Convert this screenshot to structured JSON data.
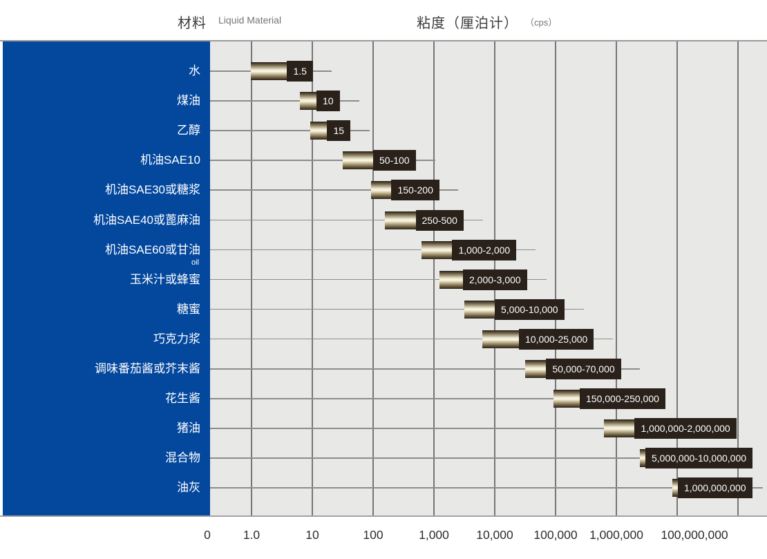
{
  "chart_data": {
    "type": "bar",
    "orientation": "horizontal",
    "x_scale": "log",
    "title_left_zh": "材料",
    "title_left_en": "Liquid Material",
    "title_right_zh": "粘度（厘泊计）",
    "title_right_unit": "（cps）",
    "x_axis": {
      "ticks": [
        {
          "label": "0",
          "value": 0
        },
        {
          "label": "1.0",
          "value": 1
        },
        {
          "label": "10",
          "value": 10
        },
        {
          "label": "100",
          "value": 100
        },
        {
          "label": "1,000",
          "value": 1000
        },
        {
          "label": "10,000",
          "value": 10000
        },
        {
          "label": "100,000",
          "value": 100000
        },
        {
          "label": "1,000,000",
          "value": 1000000
        },
        {
          "label": "100,000,000",
          "value": 100000000
        }
      ]
    },
    "materials": [
      {
        "name": "水",
        "range_label": "1.5",
        "min": 1.5,
        "max": 1.5,
        "tail": true
      },
      {
        "name": "煤油",
        "range_label": "10",
        "min": 10,
        "max": 10,
        "tail": true
      },
      {
        "name": "乙醇",
        "range_label": "15",
        "min": 15,
        "max": 15,
        "tail": true
      },
      {
        "name": "机油SAE10",
        "range_label": "50-100",
        "min": 50,
        "max": 100,
        "tail": true
      },
      {
        "name": "机油SAE30或糖浆",
        "range_label": "150-200",
        "min": 150,
        "max": 200,
        "tail": true
      },
      {
        "name": "机油SAE40或蓖麻油",
        "range_label": "250-500",
        "min": 250,
        "max": 500,
        "tail": true
      },
      {
        "name": "机油SAE60或甘油",
        "sub": "oil",
        "range_label": "1,000-2,000",
        "min": 1000,
        "max": 2000,
        "tail": true
      },
      {
        "name": "玉米汁或蜂蜜",
        "range_label": "2,000-3,000",
        "min": 2000,
        "max": 3000,
        "tail": true
      },
      {
        "name": "糖蜜",
        "range_label": "5,000-10,000",
        "min": 5000,
        "max": 10000,
        "tail": true
      },
      {
        "name": "巧克力浆",
        "range_label": "10,000-25,000",
        "min": 10000,
        "max": 25000,
        "tail": true
      },
      {
        "name": "调味番茄酱或芥末酱",
        "range_label": "50,000-70,000",
        "min": 50000,
        "max": 70000,
        "tail": true
      },
      {
        "name": "花生酱",
        "range_label": "150,000-250,000",
        "min": 150000,
        "max": 250000,
        "tail": false
      },
      {
        "name": "猪油",
        "range_label": "1,000,000-2,000,000",
        "min": 1000000,
        "max": 2000000,
        "tail": false
      },
      {
        "name": "混合物",
        "range_label": "5,000,000-10,000,000",
        "min": 5000000,
        "max": 10000000,
        "tail": false
      },
      {
        "name": "油灰",
        "range_label": "1,000,000,000",
        "min": 1000000000,
        "max": 1000000000,
        "tail": true
      }
    ],
    "colors": {
      "panel_blue": "#04489e",
      "chart_bg": "#e8e8e7",
      "gridline": "#767676",
      "whisker": "#8c8c8c",
      "bar_highlight": "#fbf8ea",
      "bar_shadow": "#231d14",
      "value_box_bg": "#29211a",
      "value_box_text": "#ffffff"
    }
  }
}
